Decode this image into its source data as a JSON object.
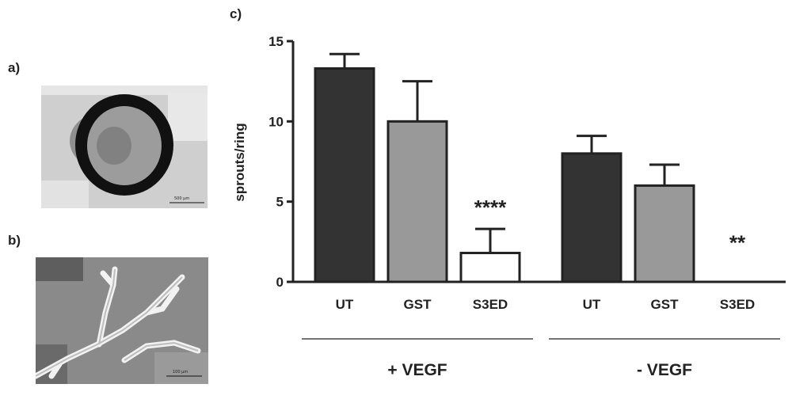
{
  "panels": {
    "a_label": "a)",
    "b_label": "b)",
    "c_label": "c)",
    "a_scalebar": "500 µm",
    "b_scalebar": "100 µm"
  },
  "colors": {
    "ut": "#333333",
    "gst": "#999999",
    "s3ed": "#ffffff",
    "axis": "#222222"
  },
  "chart_data": {
    "type": "bar",
    "ylabel": "sprouts/ring",
    "ylim": [
      0,
      15
    ],
    "yticks": [
      0,
      5,
      10,
      15
    ],
    "groups": [
      {
        "name": "+ VEGF",
        "bars": [
          {
            "category": "UT",
            "value": 13.3,
            "error": 0.9,
            "color": "#333333",
            "significance": ""
          },
          {
            "category": "GST",
            "value": 10.0,
            "error": 2.5,
            "color": "#999999",
            "significance": ""
          },
          {
            "category": "S3ED",
            "value": 1.8,
            "error": 1.5,
            "color": "#ffffff",
            "significance": "****"
          }
        ]
      },
      {
        "name": "- VEGF",
        "bars": [
          {
            "category": "UT",
            "value": 8.0,
            "error": 1.1,
            "color": "#333333",
            "significance": ""
          },
          {
            "category": "GST",
            "value": 6.0,
            "error": 1.3,
            "color": "#999999",
            "significance": ""
          },
          {
            "category": "S3ED",
            "value": 0.0,
            "error": 0.0,
            "color": "#ffffff",
            "significance": "**"
          }
        ]
      }
    ]
  }
}
